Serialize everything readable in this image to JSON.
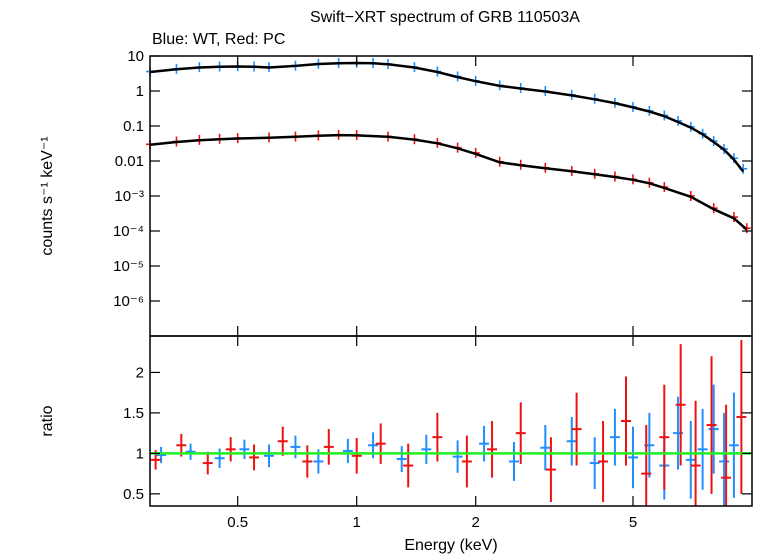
{
  "chart_data": {
    "type": "scatter",
    "title": "Swift−XRT spectrum of GRB 110503A",
    "subtitle": "Blue: WT, Red: PC",
    "xlabel": "Energy (keV)",
    "x_scale": "log",
    "xlim": [
      0.3,
      10
    ],
    "x_ticks": [
      {
        "value": 0.5,
        "label": "0.5"
      },
      {
        "value": 1,
        "label": "1"
      },
      {
        "value": 2,
        "label": "2"
      },
      {
        "value": 5,
        "label": "5"
      }
    ],
    "panels": [
      {
        "id": "spectrum",
        "ylabel": "counts s⁻¹ keV⁻¹",
        "y_scale": "log",
        "ylim": [
          1e-07,
          10
        ],
        "y_ticks": [
          {
            "value": 10,
            "label": "10"
          },
          {
            "value": 1,
            "label": "1"
          },
          {
            "value": 0.1,
            "label": "0.1"
          },
          {
            "value": 0.01,
            "label": "0.01"
          },
          {
            "value": 0.001,
            "label": "10⁻³"
          },
          {
            "value": 0.0001,
            "label": "10⁻⁴"
          },
          {
            "value": 1e-05,
            "label": "10⁻⁵"
          },
          {
            "value": 1e-06,
            "label": "10⁻⁶"
          }
        ],
        "series": [
          {
            "color": "#1f8fff",
            "kind": "data",
            "x": [
              0.3,
              0.35,
              0.4,
              0.45,
              0.5,
              0.55,
              0.6,
              0.7,
              0.8,
              0.9,
              1.0,
              1.1,
              1.2,
              1.4,
              1.6,
              1.8,
              2.0,
              2.3,
              2.6,
              3.0,
              3.5,
              4.0,
              4.5,
              5.0,
              5.5,
              6.0,
              6.5,
              7.0,
              7.5,
              8.0,
              8.5,
              9.0,
              9.5
            ],
            "y": [
              3.6,
              4.3,
              4.8,
              5.0,
              5.1,
              5.0,
              4.8,
              5.3,
              6.0,
              6.3,
              6.4,
              6.3,
              5.9,
              4.8,
              3.6,
              2.6,
              1.95,
              1.45,
              1.22,
              1.0,
              0.78,
              0.6,
              0.46,
              0.35,
              0.27,
              0.2,
              0.14,
              0.095,
              0.06,
              0.037,
              0.022,
              0.012,
              0.006
            ]
          },
          {
            "color": "#ee1111",
            "kind": "data",
            "x": [
              0.3,
              0.35,
              0.4,
              0.45,
              0.5,
              0.6,
              0.7,
              0.8,
              0.9,
              1.0,
              1.2,
              1.4,
              1.6,
              1.8,
              2.0,
              2.3,
              2.6,
              3.0,
              3.5,
              4.0,
              4.5,
              5.0,
              5.5,
              6.0,
              7.0,
              8.0,
              9.0,
              9.7
            ],
            "y": [
              0.03,
              0.036,
              0.04,
              0.043,
              0.045,
              0.047,
              0.05,
              0.054,
              0.056,
              0.055,
              0.05,
              0.042,
              0.033,
              0.024,
              0.017,
              0.0095,
              0.0078,
              0.0064,
              0.0052,
              0.0043,
              0.0036,
              0.003,
              0.0024,
              0.0018,
              0.001,
              0.00045,
              0.00025,
              0.00012
            ]
          },
          {
            "color": "#000000",
            "kind": "model",
            "x": [
              0.3,
              0.35,
              0.4,
              0.45,
              0.5,
              0.55,
              0.6,
              0.7,
              0.8,
              0.9,
              1.0,
              1.1,
              1.2,
              1.4,
              1.6,
              1.8,
              2.0,
              2.3,
              2.6,
              3.0,
              3.5,
              4.0,
              4.5,
              5.0,
              5.5,
              6.0,
              6.5,
              7.0,
              7.5,
              8.0,
              8.5,
              9.0,
              9.5
            ],
            "y": [
              3.5,
              4.2,
              4.7,
              4.95,
              5.0,
              4.9,
              4.7,
              5.2,
              5.9,
              6.2,
              6.3,
              6.2,
              5.8,
              4.7,
              3.5,
              2.5,
              1.9,
              1.4,
              1.18,
              0.97,
              0.75,
              0.58,
              0.45,
              0.34,
              0.26,
              0.19,
              0.13,
              0.09,
              0.058,
              0.035,
              0.021,
              0.011,
              0.005
            ]
          },
          {
            "color": "#000000",
            "kind": "model",
            "x": [
              0.3,
              0.35,
              0.4,
              0.45,
              0.5,
              0.6,
              0.7,
              0.8,
              0.9,
              1.0,
              1.2,
              1.4,
              1.6,
              1.8,
              2.0,
              2.3,
              2.6,
              3.0,
              3.5,
              4.0,
              4.5,
              5.0,
              5.5,
              6.0,
              7.0,
              8.0,
              9.0,
              9.7
            ],
            "y": [
              0.029,
              0.035,
              0.039,
              0.042,
              0.044,
              0.046,
              0.049,
              0.053,
              0.055,
              0.054,
              0.049,
              0.041,
              0.032,
              0.023,
              0.016,
              0.0092,
              0.0076,
              0.0062,
              0.0051,
              0.0042,
              0.0035,
              0.0029,
              0.0023,
              0.0017,
              0.00095,
              0.00042,
              0.00023,
              0.00011
            ]
          }
        ]
      },
      {
        "id": "ratio",
        "ylabel": "ratio",
        "y_scale": "linear",
        "ylim": [
          0.35,
          2.45
        ],
        "y_ticks": [
          {
            "value": 0.5,
            "label": "0.5"
          },
          {
            "value": 1,
            "label": "1"
          },
          {
            "value": 1.5,
            "label": "1.5"
          },
          {
            "value": 2,
            "label": "2"
          }
        ],
        "reference_line": {
          "value": 1,
          "color": "#22ee22"
        },
        "series": [
          {
            "color": "#1f8fff",
            "kind": "ratio",
            "x": [
              0.32,
              0.38,
              0.45,
              0.52,
              0.6,
              0.7,
              0.8,
              0.95,
              1.1,
              1.3,
              1.5,
              1.8,
              2.1,
              2.5,
              3.0,
              3.5,
              4.0,
              4.5,
              5.0,
              5.5,
              6.0,
              6.5,
              7.0,
              7.5,
              8.0,
              8.5,
              9.0
            ],
            "y": [
              0.98,
              1.02,
              0.94,
              1.05,
              0.97,
              1.08,
              0.9,
              1.03,
              1.1,
              0.93,
              1.05,
              0.96,
              1.12,
              0.9,
              1.07,
              1.15,
              0.88,
              1.2,
              0.95,
              1.1,
              0.85,
              1.25,
              0.92,
              1.05,
              1.3,
              0.9,
              1.1
            ],
            "err": [
              0.1,
              0.1,
              0.12,
              0.12,
              0.14,
              0.14,
              0.15,
              0.15,
              0.16,
              0.16,
              0.18,
              0.2,
              0.22,
              0.24,
              0.28,
              0.3,
              0.32,
              0.35,
              0.38,
              0.4,
              0.42,
              0.45,
              0.48,
              0.5,
              0.55,
              0.6,
              0.65
            ]
          },
          {
            "color": "#ee1111",
            "kind": "ratio",
            "x": [
              0.31,
              0.36,
              0.42,
              0.48,
              0.55,
              0.65,
              0.75,
              0.85,
              1.0,
              1.15,
              1.35,
              1.6,
              1.9,
              2.2,
              2.6,
              3.1,
              3.6,
              4.2,
              4.8,
              5.4,
              6.0,
              6.6,
              7.2,
              7.9,
              8.6,
              9.4
            ],
            "y": [
              0.92,
              1.1,
              0.88,
              1.05,
              0.95,
              1.15,
              0.9,
              1.08,
              0.97,
              1.12,
              0.85,
              1.2,
              0.9,
              1.05,
              1.25,
              0.8,
              1.3,
              0.9,
              1.4,
              0.75,
              1.2,
              1.6,
              0.85,
              1.35,
              0.7,
              1.45
            ],
            "err": [
              0.12,
              0.14,
              0.14,
              0.15,
              0.16,
              0.18,
              0.2,
              0.22,
              0.22,
              0.25,
              0.27,
              0.3,
              0.32,
              0.35,
              0.38,
              0.4,
              0.45,
              0.5,
              0.55,
              0.6,
              0.65,
              0.75,
              0.8,
              0.85,
              0.9,
              0.95
            ]
          }
        ]
      }
    ]
  }
}
